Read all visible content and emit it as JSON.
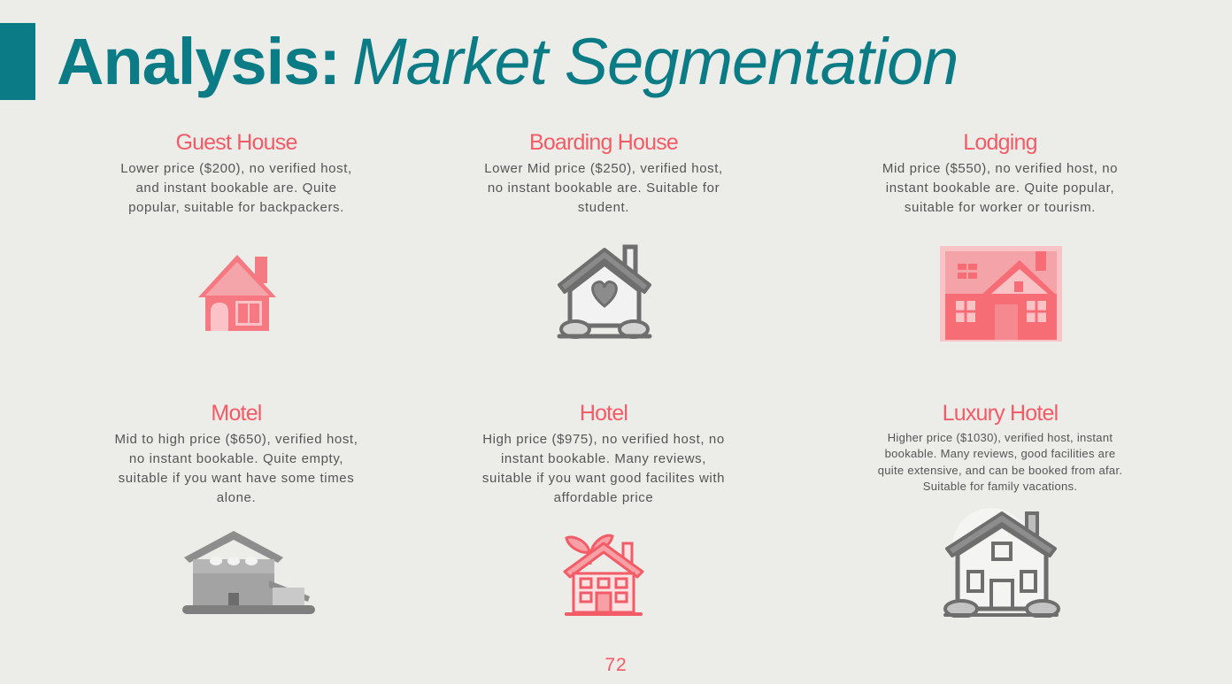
{
  "slide": {
    "title_bold": "Analysis:",
    "title_italic": "Market Segmentation",
    "page_number": "72",
    "colors": {
      "accent": "#0b7c86",
      "heading": "#f35b66",
      "body_text": "#555555",
      "background": "#ecece8"
    }
  },
  "segments": [
    {
      "name": "Guest House",
      "description": "Lower price ($200), no verified host, and instant bookable are. Quite popular, suitable for backpackers.",
      "icon": "pink-house-icon"
    },
    {
      "name": "Boarding House",
      "description": "Lower Mid price ($250), verified host, no instant bookable are. Suitable for student.",
      "icon": "grey-house-heart-icon"
    },
    {
      "name": "Lodging",
      "description": "Mid price ($550), no verified host, no instant bookable are. Quite popular, suitable for worker or tourism.",
      "icon": "pink-lodge-icon"
    },
    {
      "name": "Motel",
      "description": "Mid to high price ($650), verified host, no instant bookable. Quite empty, suitable if you want have some times alone.",
      "icon": "grey-motel-icon"
    },
    {
      "name": "Hotel",
      "description": "High price ($975), no verified host, no instant bookable. Many reviews, suitable if you want good facilites with affordable price",
      "icon": "pink-eco-house-icon"
    },
    {
      "name": "Luxury Hotel",
      "description": "Higher price ($1030), verified host, instant bookable. Many reviews, good facilities are quite extensive, and can be booked from afar. Suitable for family vacations.",
      "icon": "grey-villa-icon"
    }
  ]
}
